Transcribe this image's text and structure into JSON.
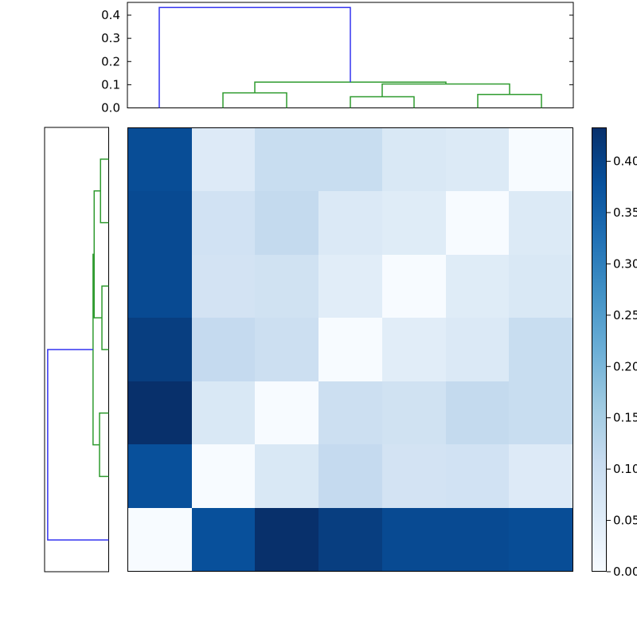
{
  "figure": {
    "kind": "hierarchical-clustering-heatmap",
    "background": "#ffffff",
    "colors": {
      "dendrogram_cluster_link": "#2f9b2f",
      "dendrogram_root_link": "#3333f0",
      "axes_border": "#000000",
      "tick_color": "#000000",
      "tick_label_color": "#000000"
    }
  },
  "chart_data": {
    "type": "heatmap",
    "subtype": "clustermap-distance-matrix-with-dendrograms",
    "colormap": "Blues",
    "vmin": 0.0,
    "vmax": 0.433,
    "n_rows": 7,
    "n_cols": 7,
    "row_order_items_top_to_bottom": [
      7,
      6,
      5,
      4,
      3,
      2,
      1
    ],
    "column_order_items_left_to_right": [
      1,
      2,
      3,
      4,
      5,
      6,
      7
    ],
    "matrix_rows_top_to_bottom": [
      [
        0.385,
        0.057,
        0.103,
        0.103,
        0.065,
        0.058,
        0.0
      ],
      [
        0.39,
        0.083,
        0.111,
        0.06,
        0.052,
        0.0,
        0.058
      ],
      [
        0.39,
        0.08,
        0.085,
        0.048,
        0.0,
        0.052,
        0.065
      ],
      [
        0.41,
        0.11,
        0.095,
        0.0,
        0.048,
        0.06,
        0.103
      ],
      [
        0.433,
        0.065,
        0.0,
        0.095,
        0.085,
        0.111,
        0.103
      ],
      [
        0.38,
        0.0,
        0.065,
        0.11,
        0.08,
        0.083,
        0.057
      ],
      [
        0.0,
        0.38,
        0.433,
        0.41,
        0.39,
        0.39,
        0.385
      ]
    ],
    "column_dendrogram": {
      "position": "top",
      "ylim": [
        0.0,
        0.455
      ],
      "tick_values": [
        0.0,
        0.1,
        0.2,
        0.3,
        0.4
      ],
      "tick_labels": [
        "0.0",
        "0.1",
        "0.2",
        "0.3",
        "0.4"
      ],
      "leaf_positions": [
        1,
        2,
        3,
        4,
        5,
        6,
        7
      ],
      "links": [
        {
          "x1": 2,
          "h1": 0,
          "x2": 3,
          "h2": 0,
          "height": 0.065,
          "color": "green"
        },
        {
          "x1": 4,
          "h1": 0,
          "x2": 5,
          "h2": 0,
          "height": 0.048,
          "color": "green"
        },
        {
          "x1": 6,
          "h1": 0,
          "x2": 7,
          "h2": 0,
          "height": 0.058,
          "color": "green"
        },
        {
          "x1": 4.5,
          "h1": 0.048,
          "x2": 6.5,
          "h2": 0.058,
          "height": 0.103,
          "color": "green"
        },
        {
          "x1": 2.5,
          "h1": 0.065,
          "x2": 5.5,
          "h2": 0.103,
          "height": 0.111,
          "color": "green"
        },
        {
          "x1": 1,
          "h1": 0,
          "x2": 4,
          "h2": 0.111,
          "height": 0.433,
          "color": "blue"
        }
      ]
    },
    "row_dendrogram": {
      "position": "left",
      "xlim": [
        0.0,
        0.455
      ],
      "leaf_positions": [
        1,
        2,
        3,
        4,
        5,
        6,
        7
      ],
      "links": [
        {
          "y1": 1,
          "d1": 0,
          "y2": 2,
          "d2": 0,
          "height": 0.058,
          "color": "green"
        },
        {
          "y1": 3,
          "d1": 0,
          "y2": 4,
          "d2": 0,
          "height": 0.048,
          "color": "green"
        },
        {
          "y1": 1.5,
          "d1": 0.058,
          "y2": 3.5,
          "d2": 0.048,
          "height": 0.103,
          "color": "green"
        },
        {
          "y1": 5,
          "d1": 0,
          "y2": 6,
          "d2": 0,
          "height": 0.065,
          "color": "green"
        },
        {
          "y1": 2.5,
          "d1": 0.103,
          "y2": 5.5,
          "d2": 0.065,
          "height": 0.111,
          "color": "green"
        },
        {
          "y1": 4,
          "d1": 0.111,
          "y2": 7,
          "d2": 0,
          "height": 0.433,
          "color": "blue"
        }
      ]
    },
    "colorbar": {
      "position": "right",
      "value_range": [
        0.0,
        0.433
      ],
      "tick_values": [
        0.0,
        0.05,
        0.1,
        0.15,
        0.2,
        0.25,
        0.3,
        0.35,
        0.4
      ],
      "tick_labels": [
        "0.00",
        "0.05",
        "0.10",
        "0.15",
        "0.20",
        "0.25",
        "0.30",
        "0.35",
        "0.40"
      ]
    },
    "colormap_stops": [
      [
        0.0,
        [
          247,
          251,
          255
        ]
      ],
      [
        0.125,
        [
          222,
          235,
          247
        ]
      ],
      [
        0.25,
        [
          198,
          219,
          239
        ]
      ],
      [
        0.375,
        [
          158,
          202,
          225
        ]
      ],
      [
        0.5,
        [
          107,
          174,
          214
        ]
      ],
      [
        0.625,
        [
          66,
          146,
          198
        ]
      ],
      [
        0.75,
        [
          33,
          113,
          181
        ]
      ],
      [
        0.875,
        [
          8,
          81,
          156
        ]
      ],
      [
        1.0,
        [
          8,
          48,
          107
        ]
      ]
    ]
  }
}
